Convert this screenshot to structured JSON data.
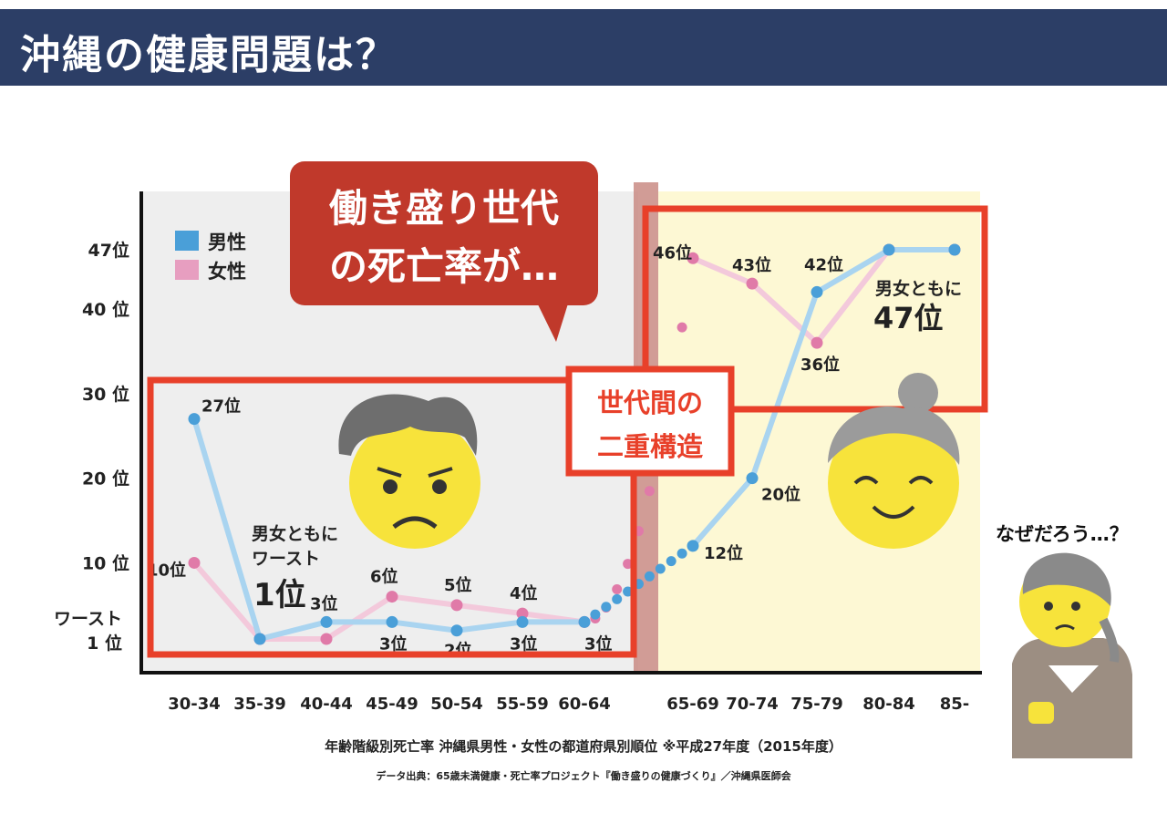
{
  "page": {
    "title": "沖縄の健康問題は？"
  },
  "callouts": {
    "speech_line1": "働き盛り世代",
    "speech_line2": "の死亡率が…",
    "gen_line1": "世代間の",
    "gen_line2": "二重構造",
    "both_47_line1": "男女ともに",
    "both_47_line2": "47位",
    "both_worst_line1": "男女ともに",
    "both_worst_line2": "ワースト",
    "both_worst_line3": "1位",
    "why": "なぜだろう…？"
  },
  "legend": {
    "male": "男性",
    "female": "女性"
  },
  "colors": {
    "header_bg": "#2c3e66",
    "male_line": "#a9d4f0",
    "male_point": "#4a9fd8",
    "female_line": "#f3c9db",
    "female_point": "#e07aa8",
    "highlight_red": "#e8402a",
    "speech_bubble": "#c0392b",
    "left_bg": "#eeeeee",
    "right_bg": "#fdf8d4"
  },
  "footer": {
    "caption": "年齢階級別死亡率 沖縄県男性・女性の都道府県別順位 ※平成27年度（2015年度）",
    "source": "データ出典：65歳未満健康・死亡率プロジェクト『働き盛りの健康づくり』／沖縄県医師会"
  },
  "chart_data": {
    "type": "line",
    "categories": [
      "30-34",
      "35-39",
      "40-44",
      "45-49",
      "50-54",
      "55-59",
      "60-64",
      "65-69",
      "70-74",
      "75-79",
      "80-84",
      "85-"
    ],
    "y_tick_labels": [
      {
        "value": 47,
        "label": "47位"
      },
      {
        "value": 40,
        "label": "40 位"
      },
      {
        "value": 30,
        "label": "30 位"
      },
      {
        "value": 20,
        "label": "20 位"
      },
      {
        "value": 10,
        "label": "10 位"
      },
      {
        "value": 1,
        "label_line1": "ワースト",
        "label_line2": "1 位"
      }
    ],
    "ylim": [
      1,
      47
    ],
    "series": [
      {
        "name": "男性",
        "values": [
          27,
          1,
          3,
          3,
          2,
          3,
          3,
          12,
          20,
          42,
          47,
          47
        ]
      },
      {
        "name": "女性",
        "values": [
          10,
          1,
          1,
          6,
          5,
          4,
          3,
          46,
          43,
          36,
          47,
          47
        ]
      }
    ],
    "male_labels": [
      {
        "index": 0,
        "text": "27位"
      },
      {
        "index": 2,
        "text": "3位"
      },
      {
        "index": 3,
        "text": "3位"
      },
      {
        "index": 4,
        "text": "2位"
      },
      {
        "index": 5,
        "text": "3位"
      },
      {
        "index": 6,
        "text": "3位"
      },
      {
        "index": 7,
        "text": "12位"
      },
      {
        "index": 8,
        "text": "20位"
      },
      {
        "index": 9,
        "text": "42位"
      }
    ],
    "female_labels": [
      {
        "index": 0,
        "text": "10位"
      },
      {
        "index": 3,
        "text": "6位"
      },
      {
        "index": 4,
        "text": "5位"
      },
      {
        "index": 5,
        "text": "4位"
      },
      {
        "index": 7,
        "text": "46位"
      },
      {
        "index": 8,
        "text": "43位"
      },
      {
        "index": 9,
        "text": "36位"
      }
    ]
  }
}
